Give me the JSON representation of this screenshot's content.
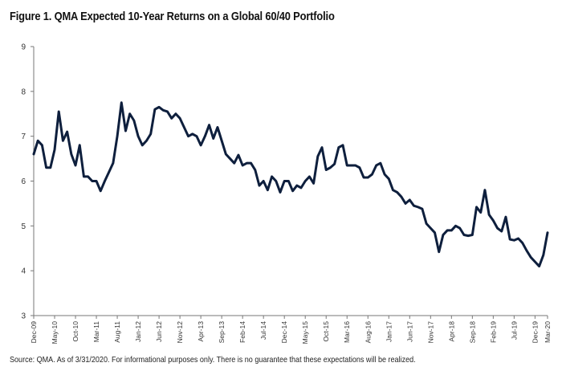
{
  "figure": {
    "title": "Figure 1. QMA Expected 10-Year Returns on a Global 60/40 Portfolio",
    "source": "Source: QMA. As of 3/31/2020. For informational purposes only. There is no guarantee that these expectations will be realized."
  },
  "chart_data": {
    "type": "line",
    "title": "Figure 1. QMA Expected 10-Year Returns on a Global 60/40 Portfolio",
    "xlabel": "",
    "ylabel": "",
    "ylim": [
      3,
      9
    ],
    "yticks": [
      3,
      4,
      5,
      6,
      7,
      8,
      9
    ],
    "grid": false,
    "legend": "none",
    "line_color": "#0e1f3d",
    "x_start": "Dec-09",
    "x_end": "Mar-20",
    "x_tick_labels": [
      "Dec-09",
      "May-10",
      "Oct-10",
      "Mar-11",
      "Aug-11",
      "Jan-12",
      "Jun-12",
      "Nov-12",
      "Apr-13",
      "Sep-13",
      "Feb-14",
      "Jul-14",
      "Dec-14",
      "May-15",
      "Oct-15",
      "Mar-16",
      "Aug-16",
      "Jan-17",
      "Jun-17",
      "Nov-17",
      "Apr-18",
      "Sep-18",
      "Feb-19",
      "Jul-19",
      "Dec-19",
      "Mar-20"
    ],
    "series": [
      {
        "values": [
          6.6,
          6.9,
          6.8,
          6.3,
          6.3,
          6.7,
          7.55,
          6.9,
          7.1,
          6.6,
          6.35,
          6.8,
          6.1,
          6.1,
          6.0,
          6.0,
          5.78,
          6.0,
          6.2,
          6.4,
          7.0,
          7.75,
          7.12,
          7.5,
          7.35,
          7.0,
          6.8,
          6.9,
          7.05,
          7.6,
          7.65,
          7.58,
          7.55,
          7.4,
          7.5,
          7.4,
          7.2,
          7.0,
          7.05,
          7.0,
          6.8,
          7.0,
          7.25,
          6.95,
          7.2,
          6.9,
          6.6,
          6.5,
          6.4,
          6.58,
          6.35,
          6.4,
          6.4,
          6.25,
          5.9,
          6.0,
          5.8,
          6.1,
          6.0,
          5.75,
          6.0,
          6.0,
          5.78,
          5.9,
          5.85,
          6.0,
          6.1,
          5.95,
          6.55,
          6.75,
          6.25,
          6.3,
          6.38,
          6.75,
          6.8,
          6.35,
          6.35,
          6.35,
          6.3,
          6.08,
          6.08,
          6.15,
          6.35,
          6.4,
          6.15,
          6.05,
          5.8,
          5.75,
          5.65,
          5.5,
          5.58,
          5.45,
          5.42,
          5.38,
          5.05,
          4.95,
          4.85,
          4.42,
          4.8,
          4.9,
          4.9,
          5.0,
          4.95,
          4.8,
          4.78,
          4.8,
          5.42,
          5.3,
          5.8,
          5.25,
          5.12,
          4.95,
          4.88,
          5.2,
          4.7,
          4.68,
          4.72,
          4.62,
          4.45,
          4.3,
          4.2,
          4.1,
          4.35,
          4.85
        ]
      }
    ]
  }
}
